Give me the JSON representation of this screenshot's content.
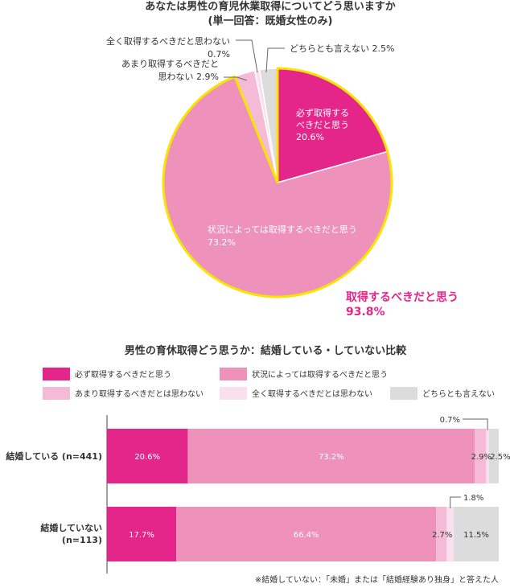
{
  "colors": {
    "must": "#e4268a",
    "depends": "#ee92bb",
    "not_really": "#f5bad5",
    "not_at_all": "#fae0ec",
    "neither": "#dcdcdc",
    "highlight_outline": "#f7e400",
    "highlight_text": "#e4268a",
    "axis": "#444444"
  },
  "chart_data": [
    {
      "type": "pie",
      "title": "あなたは男性の育児休業取得についてどう思いますか",
      "subtitle": "(単一回答：既婚女性のみ)",
      "slices": [
        {
          "key": "must",
          "label_lines": [
            "必ず取得する",
            "べきだと思う"
          ],
          "value": 20.6,
          "value_text": "20.6%"
        },
        {
          "key": "depends",
          "label_lines": [
            "状況によっては取得するべきだと思う"
          ],
          "value": 73.2,
          "value_text": "73.2%"
        },
        {
          "key": "not_really",
          "label_lines": [
            "あまり取得するべきだと",
            "思わない 2.9%"
          ],
          "value": 2.9
        },
        {
          "key": "not_at_all",
          "label_lines": [
            "全く取得するべきだと思わない",
            "0.7%"
          ],
          "value": 0.7
        },
        {
          "key": "neither",
          "label_lines": [
            "どちらとも言えない 2.5%"
          ],
          "value": 2.5
        }
      ],
      "highlight": {
        "lines": [
          "取得するべきだと思う",
          "93.8%"
        ],
        "value": 93.8
      }
    },
    {
      "type": "bar",
      "orientation": "horizontal",
      "stacked": true,
      "title": "男性の育休取得どう思うか：結婚している・していない比較",
      "legend": [
        {
          "key": "must",
          "label": "必ず取得するべきだと思う"
        },
        {
          "key": "depends",
          "label": "状況によっては取得するべきだと思う"
        },
        {
          "key": "not_really",
          "label": "あまり取得するべきだとは思わない"
        },
        {
          "key": "not_at_all",
          "label": "全く取得するべきだとは思わない"
        },
        {
          "key": "neither",
          "label": "どちらとも言えない"
        }
      ],
      "categories": [
        {
          "label_lines": [
            "結婚している (n=441)"
          ],
          "values": [
            20.6,
            73.2,
            2.9,
            0.7,
            2.5
          ],
          "texts": [
            "20.6%",
            "73.2%",
            "2.9%",
            "0.7%",
            "2.5%"
          ]
        },
        {
          "label_lines": [
            "結婚していない",
            "(n=113)"
          ],
          "values": [
            17.7,
            66.4,
            2.7,
            1.8,
            11.5
          ],
          "texts": [
            "17.7%",
            "66.4%",
            "2.7%",
            "1.8%",
            "11.5%"
          ]
        }
      ],
      "xlim": [
        0,
        100
      ],
      "note": "※結婚していない：「未婚」または「結婚経験あり独身」と答えた人"
    }
  ]
}
